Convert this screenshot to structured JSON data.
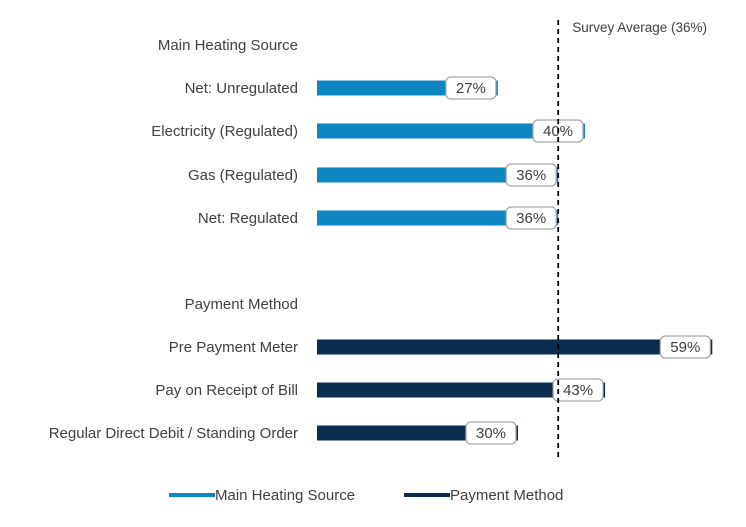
{
  "chart_data": {
    "type": "bar",
    "orientation": "horizontal",
    "xlim": [
      0,
      60
    ],
    "reference_line": {
      "value": 36,
      "label": "Survey Average (36%)",
      "style": "dashed",
      "color": "#000000"
    },
    "groups": [
      {
        "name": "Main Heating Source",
        "color": "#0e86c2",
        "categories": [
          "Net: Unregulated",
          "Electricity (Regulated)",
          "Gas (Regulated)",
          "Net: Regulated"
        ],
        "values": [
          27,
          40,
          36,
          36
        ],
        "value_labels": [
          "27%",
          "40%",
          "36%",
          "36%"
        ]
      },
      {
        "name": "Payment Method",
        "color": "#0b2d50",
        "categories": [
          "Pre Payment Meter",
          "Pay on Receipt of Bill",
          "Regular Direct Debit / Standing Order"
        ],
        "values": [
          59,
          43,
          30
        ],
        "value_labels": [
          "59%",
          "43%",
          "30%"
        ]
      }
    ],
    "legend": {
      "position": "bottom",
      "entries": [
        {
          "name": "Main Heating Source",
          "color": "#0e86c2"
        },
        {
          "name": "Payment Method",
          "color": "#0b2d50"
        }
      ]
    },
    "grid": false
  }
}
